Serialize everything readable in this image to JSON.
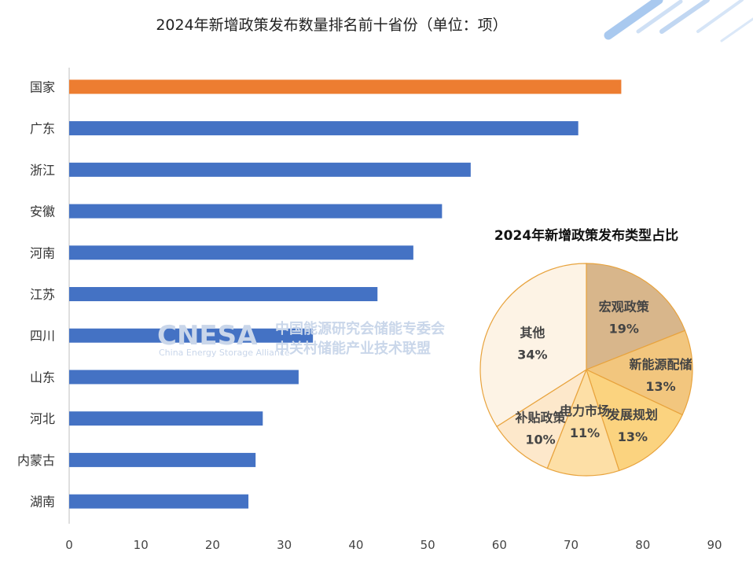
{
  "chart_data": [
    {
      "type": "bar",
      "orientation": "horizontal",
      "title": "2024年新增政策发布数量排名前十省份（单位：项）",
      "categories": [
        "国家",
        "广东",
        "浙江",
        "安徽",
        "河南",
        "江苏",
        "四川",
        "山东",
        "河北",
        "内蒙古",
        "湖南"
      ],
      "values": [
        77,
        71,
        56,
        52,
        48,
        43,
        34,
        32,
        27,
        26,
        25
      ],
      "highlight_category": "国家",
      "colors": {
        "default": "#4472c4",
        "highlight": "#ed7d31"
      },
      "xlim": [
        0,
        90
      ],
      "xticks": [
        "0",
        "10",
        "20",
        "30",
        "40",
        "50",
        "60",
        "70",
        "80",
        "90"
      ],
      "grid": false
    },
    {
      "type": "pie",
      "title": "2024年新增政策发布类型占比",
      "slices": [
        {
          "label": "宏观政策",
          "value": 19,
          "text": "19%",
          "color": "#d8b68b"
        },
        {
          "label": "新能源配储",
          "value": 13,
          "text": "13%",
          "color": "#f2c67e"
        },
        {
          "label": "发展规划",
          "value": 13,
          "text": "13%",
          "color": "#fbd37f"
        },
        {
          "label": "电力市场",
          "value": 11,
          "text": "11%",
          "color": "#fddfa6"
        },
        {
          "label": "补贴政策",
          "value": 10,
          "text": "10%",
          "color": "#fde8cb"
        },
        {
          "label": "其他",
          "value": 34,
          "text": "34%",
          "color": "#fdf3e5"
        }
      ],
      "stroke_color": "#e8a33d"
    }
  ],
  "watermark": {
    "logo_text": "CNESA",
    "logo_subtitle": "China Energy Storage Alliance",
    "line1": "中国能源研究会储能专委会",
    "line2": "中关村储能产业技术联盟"
  }
}
